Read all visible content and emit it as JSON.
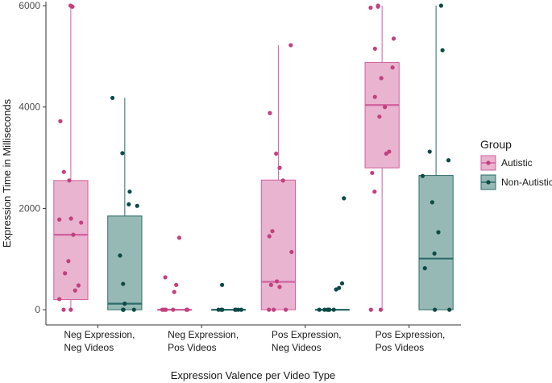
{
  "chart_data": {
    "type": "box",
    "title": "",
    "xlabel": "Expression Valence per Video Type",
    "ylabel": "Expression Time in Milliseconds",
    "ylim": [
      -300,
      6080
    ],
    "yticks": [
      0,
      2000,
      4000,
      6000
    ],
    "grid": false,
    "legend": {
      "title": "Group",
      "position": "right"
    },
    "categories": [
      [
        "Neg Expression,",
        "Neg Videos"
      ],
      [
        "Neg Expression,",
        "Pos Videos"
      ],
      [
        "Pos Expression,",
        "Neg Videos"
      ],
      [
        "Pos Expression,",
        "Pos Videos"
      ]
    ],
    "series": [
      {
        "name": "Autistic",
        "fill": "#e8b4cf",
        "stroke": "#d0609c",
        "point": "#c2407f",
        "boxes": [
          {
            "min": 0,
            "q1": 200,
            "median": 1480,
            "q3": 2550,
            "max": 6000,
            "points": [
              6000,
              5980,
              3720,
              2720,
              2550,
              1800,
              1780,
              1720,
              1480,
              960,
              720,
              480,
              380,
              210,
              0,
              0
            ]
          },
          {
            "min": 0,
            "q1": 0,
            "median": 0,
            "q3": 0,
            "max": 0,
            "points": [
              1420,
              640,
              490,
              350,
              0,
              0,
              0,
              0,
              0,
              0
            ]
          },
          {
            "min": 0,
            "q1": 0,
            "median": 550,
            "q3": 2560,
            "max": 5220,
            "points": [
              5220,
              3880,
              3080,
              2800,
              2550,
              1550,
              1450,
              1140,
              560,
              490,
              450,
              0,
              0,
              0
            ]
          },
          {
            "min": 0,
            "q1": 2800,
            "median": 4040,
            "q3": 4880,
            "max": 6000,
            "points": [
              6000,
              5980,
              5960,
              5350,
              5150,
              4780,
              4570,
              4200,
              4000,
              3810,
              3120,
              3080,
              2700,
              2330,
              0,
              0
            ]
          }
        ]
      },
      {
        "name": "Non-Autistic",
        "fill": "#97b9b5",
        "stroke": "#2d6c68",
        "point": "#0d4a46",
        "boxes": [
          {
            "min": 0,
            "q1": 0,
            "median": 120,
            "q3": 1850,
            "max": 4180,
            "points": [
              4180,
              3090,
              2330,
              2080,
              2050,
              1070,
              510,
              120,
              0,
              0,
              0,
              0
            ]
          },
          {
            "min": 0,
            "q1": 0,
            "median": 0,
            "q3": 0,
            "max": 0,
            "points": [
              490,
              0,
              0,
              0,
              0,
              0,
              0,
              0
            ]
          },
          {
            "min": 0,
            "q1": 0,
            "median": 0,
            "q3": 0,
            "max": 0,
            "points": [
              2200,
              520,
              430,
              400,
              0,
              0,
              0,
              0,
              0,
              0
            ]
          },
          {
            "min": 0,
            "q1": 0,
            "median": 1010,
            "q3": 2650,
            "max": 6000,
            "points": [
              6000,
              5120,
              3120,
              2950,
              2640,
              2120,
              1530,
              1110,
              820,
              0,
              0
            ]
          }
        ]
      }
    ]
  }
}
